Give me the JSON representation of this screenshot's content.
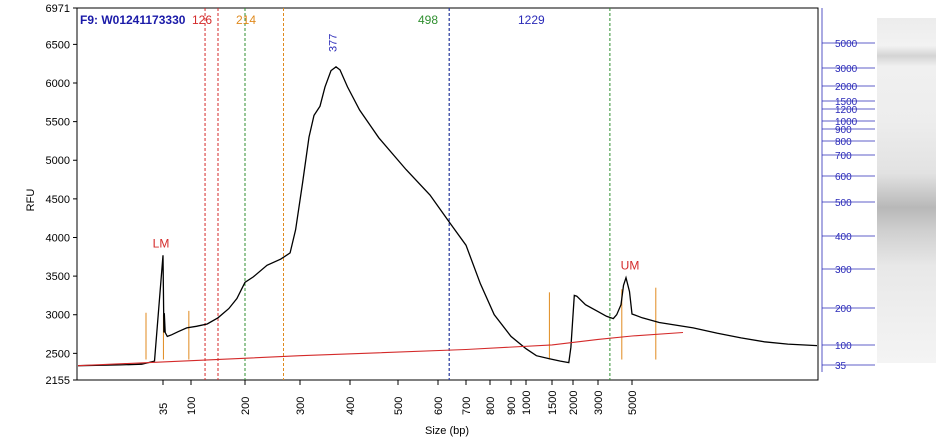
{
  "chart_data": {
    "type": "line",
    "title": "F9: W01241173330",
    "xlabel": "Size (bp)",
    "ylabel": "RFU",
    "ylim": [
      2155,
      6971
    ],
    "y_ticks": [
      2155,
      2500,
      3000,
      3500,
      4000,
      4500,
      5000,
      5500,
      6000,
      6500,
      6971
    ],
    "x_ticks": [
      {
        "label": "35",
        "bp": 35
      },
      {
        "label": "100",
        "bp": 100
      },
      {
        "label": "200",
        "bp": 200
      },
      {
        "label": "300",
        "bp": 300
      },
      {
        "label": "400",
        "bp": 400
      },
      {
        "label": "500",
        "bp": 500
      },
      {
        "label": "600",
        "bp": 600
      },
      {
        "label": "700",
        "bp": 700
      },
      {
        "label": "800",
        "bp": 800
      },
      {
        "label": "900",
        "bp": 900
      },
      {
        "label": "1000",
        "bp": 1000
      },
      {
        "label": "1500",
        "bp": 1500
      },
      {
        "label": "2000",
        "bp": 2000
      },
      {
        "label": "3000",
        "bp": 3000
      },
      {
        "label": "5000",
        "bp": 5000
      }
    ],
    "ladder_sizes": [
      "5000",
      "3000",
      "2000",
      "1500",
      "1200",
      "1000",
      "900",
      "800",
      "700",
      "600",
      "500",
      "400",
      "300",
      "200",
      "100",
      "35"
    ],
    "markers": [
      {
        "label": "LM",
        "bp": 35,
        "rfu": 3770
      },
      {
        "label": "UM",
        "bp": 5000,
        "rfu": 3480
      }
    ],
    "region_lines": [
      {
        "label": "126",
        "bp": 126,
        "color": "#d42a2a"
      },
      {
        "label": "",
        "bp": 150,
        "color": "#d42a2a"
      },
      {
        "label": "",
        "bp": 200,
        "color": "#2f8f2f"
      },
      {
        "label": "214",
        "bp": 270,
        "color": "#e08a1e"
      },
      {
        "label": "498",
        "bp": 640,
        "color": "#2f8f2f"
      },
      {
        "label": "1229",
        "bp": 640,
        "color": "#2a2ab8"
      },
      {
        "label": "",
        "bp": 3700,
        "color": "#2f8f2f"
      }
    ],
    "peak_label": {
      "label": "377",
      "bp": 377
    },
    "series": [
      {
        "color": "#000000",
        "points": [
          [
            15,
            2340
          ],
          [
            25,
            2350
          ],
          [
            30,
            2360
          ],
          [
            33,
            2400
          ],
          [
            35,
            3770
          ],
          [
            37,
            2770
          ],
          [
            38,
            3020
          ],
          [
            40,
            2770
          ],
          [
            45,
            2720
          ],
          [
            55,
            2740
          ],
          [
            70,
            2780
          ],
          [
            90,
            2830
          ],
          [
            110,
            2850
          ],
          [
            130,
            2880
          ],
          [
            150,
            2960
          ],
          [
            170,
            3080
          ],
          [
            185,
            3210
          ],
          [
            200,
            3420
          ],
          [
            215,
            3490
          ],
          [
            240,
            3640
          ],
          [
            265,
            3720
          ],
          [
            282,
            3800
          ],
          [
            292,
            4100
          ],
          [
            305,
            4700
          ],
          [
            318,
            5300
          ],
          [
            328,
            5580
          ],
          [
            340,
            5700
          ],
          [
            350,
            5950
          ],
          [
            362,
            6160
          ],
          [
            372,
            6210
          ],
          [
            380,
            6170
          ],
          [
            395,
            5950
          ],
          [
            420,
            5650
          ],
          [
            460,
            5290
          ],
          [
            520,
            4880
          ],
          [
            580,
            4550
          ],
          [
            640,
            4200
          ],
          [
            700,
            3900
          ],
          [
            760,
            3400
          ],
          [
            820,
            3000
          ],
          [
            900,
            2720
          ],
          [
            1000,
            2560
          ],
          [
            1200,
            2470
          ],
          [
            1450,
            2430
          ],
          [
            1700,
            2400
          ],
          [
            1900,
            2380
          ],
          [
            1950,
            2580
          ],
          [
            2050,
            3250
          ],
          [
            2150,
            3240
          ],
          [
            2500,
            3130
          ],
          [
            3000,
            3040
          ],
          [
            3500,
            2980
          ],
          [
            3900,
            2950
          ],
          [
            4100,
            3000
          ],
          [
            4350,
            3130
          ],
          [
            4500,
            3380
          ],
          [
            4650,
            3480
          ],
          [
            4850,
            3300
          ],
          [
            5000,
            3010
          ],
          [
            5300,
            2960
          ],
          [
            5800,
            2900
          ],
          [
            6800,
            2830
          ],
          [
            7600,
            2760
          ],
          [
            8400,
            2700
          ],
          [
            9200,
            2650
          ],
          [
            10000,
            2620
          ],
          [
            11000,
            2600
          ]
        ]
      },
      {
        "color": "#d42a2a",
        "points": [
          [
            15,
            2340
          ],
          [
            100,
            2405
          ],
          [
            300,
            2470
          ],
          [
            700,
            2550
          ],
          [
            1500,
            2610
          ],
          [
            3000,
            2680
          ],
          [
            5000,
            2725
          ],
          [
            6500,
            2770
          ]
        ]
      }
    ],
    "peak_ticks": [
      {
        "bp": 31,
        "rfu_top": 3025
      },
      {
        "bp": 36,
        "rfu_top": 3000
      },
      {
        "bp": 95,
        "rfu_top": 3050
      },
      {
        "bp": 1450,
        "rfu_top": 3290
      },
      {
        "bp": 4400,
        "rfu_top": 3330
      },
      {
        "bp": 5700,
        "rfu_top": 3350
      }
    ]
  }
}
